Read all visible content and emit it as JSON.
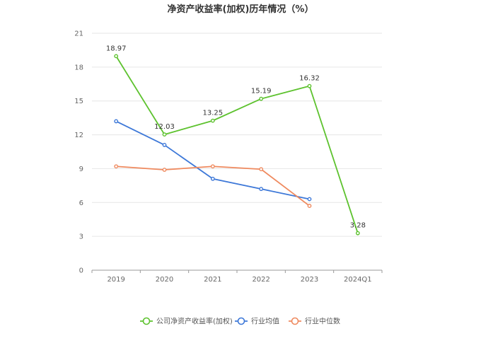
{
  "chart_data": {
    "type": "line",
    "title": "净资产收益率(加权)历年情况（%）",
    "categories": [
      "2019",
      "2020",
      "2021",
      "2022",
      "2023",
      "2024Q1"
    ],
    "ylim": [
      0,
      21
    ],
    "yticks": [
      0,
      3,
      6,
      9,
      12,
      15,
      18,
      21
    ],
    "grid": true,
    "legend_position": "bottom",
    "series": [
      {
        "name": "公司净资产收益率(加权)",
        "color": "#5dc22e",
        "values": [
          18.97,
          12.03,
          13.25,
          15.19,
          16.32,
          3.28
        ],
        "labels": [
          "18.97",
          "12.03",
          "13.25",
          "15.19",
          "16.32",
          "3.28"
        ]
      },
      {
        "name": "行业均值",
        "color": "#3d78d8",
        "values": [
          13.2,
          11.1,
          8.1,
          7.2,
          6.3,
          null
        ]
      },
      {
        "name": "行业中位数",
        "color": "#ef8a5f",
        "values": [
          9.2,
          8.9,
          9.2,
          8.95,
          5.7,
          null
        ]
      }
    ]
  }
}
